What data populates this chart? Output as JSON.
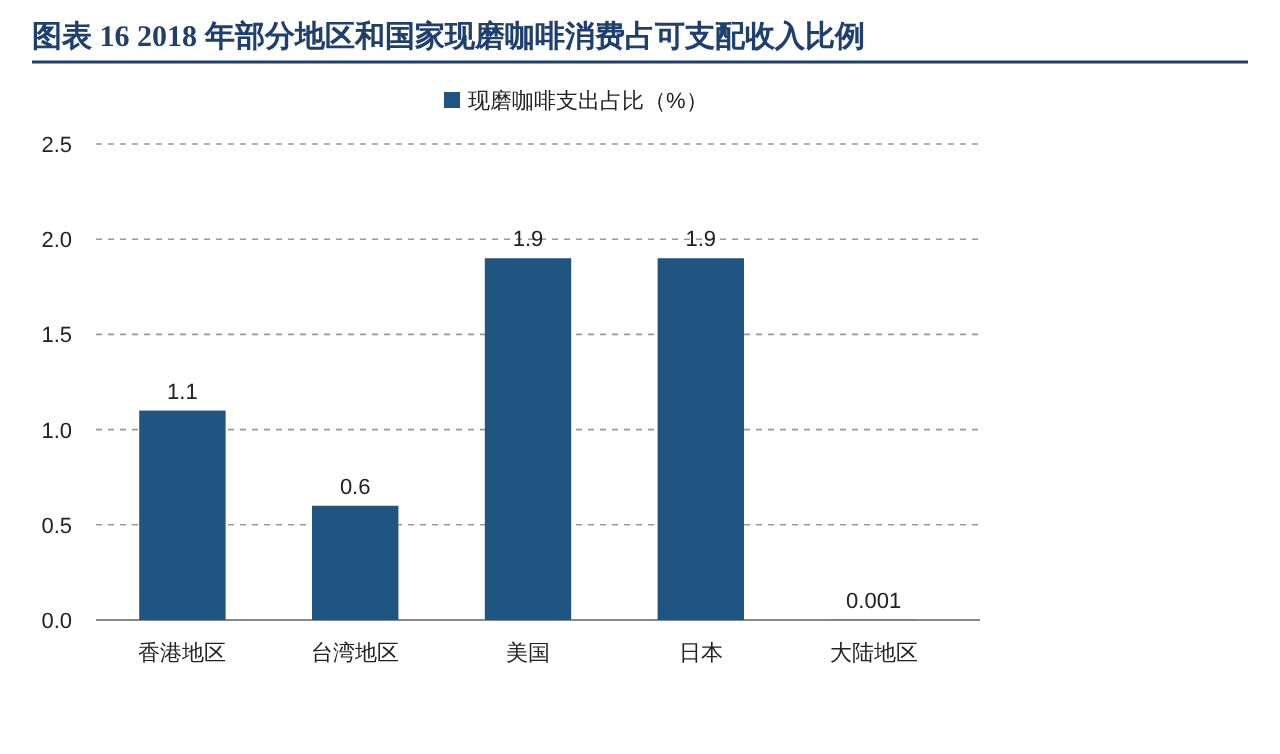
{
  "chart_data": {
    "type": "bar",
    "title": "图表 16   2018 年部分地区和国家现磨咖啡消费占可支配收入比例",
    "categories": [
      "香港地区",
      "台湾地区",
      "美国",
      "日本",
      "大陆地区"
    ],
    "series": [
      {
        "name": "现磨咖啡支出占比（%）",
        "color": "#1f5580",
        "values": [
          1.1,
          0.6,
          1.9,
          1.9,
          0.001
        ]
      }
    ],
    "ylim": [
      0,
      2.5
    ],
    "yticks": [
      {
        "value": 0,
        "label": "0.0"
      },
      {
        "value": 0.5,
        "label": "0.5"
      },
      {
        "value": 1,
        "label": "1.0"
      },
      {
        "value": 1.5,
        "label": "1.5"
      },
      {
        "value": 2,
        "label": "2.0"
      },
      {
        "value": 2.5,
        "label": "2.5"
      }
    ],
    "grid": "y",
    "legend": "top",
    "data_labels": true
  }
}
